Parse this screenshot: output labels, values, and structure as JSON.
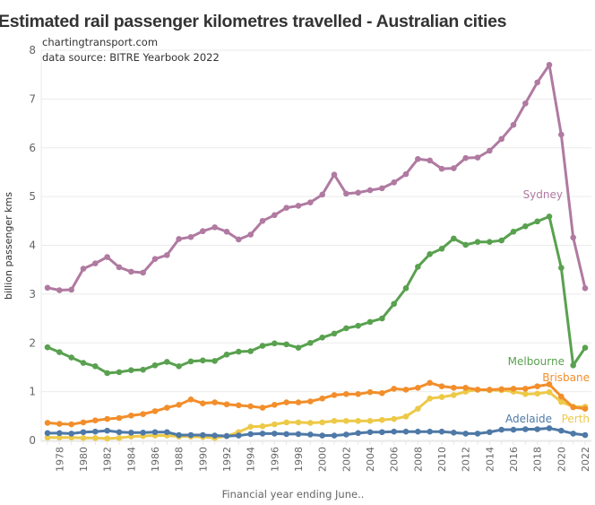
{
  "chart_data": {
    "type": "line",
    "title": "Estimated rail passenger kilometres travelled - Australian cities",
    "subtitle_lines": [
      "chartingtransport.com",
      "data source: BITRE Yearbook 2022"
    ],
    "xlabel": "Financial year ending June..",
    "ylabel": "billion passenger kms",
    "ylim": [
      0,
      8
    ],
    "yticks": [
      0,
      1,
      2,
      3,
      4,
      5,
      6,
      7,
      8
    ],
    "xlim": [
      1977,
      2022
    ],
    "xticks": [
      1978,
      1980,
      1982,
      1984,
      1986,
      1988,
      1990,
      1992,
      1994,
      1996,
      1998,
      2000,
      2002,
      2004,
      2006,
      2008,
      2010,
      2012,
      2014,
      2016,
      2018,
      2020,
      2022
    ],
    "grid": true,
    "legend": "direct labels at line ends (right)",
    "x": [
      1977,
      1978,
      1979,
      1980,
      1981,
      1982,
      1983,
      1984,
      1985,
      1986,
      1987,
      1988,
      1989,
      1990,
      1991,
      1992,
      1993,
      1994,
      1995,
      1996,
      1997,
      1998,
      1999,
      2000,
      2001,
      2002,
      2003,
      2004,
      2005,
      2006,
      2007,
      2008,
      2009,
      2010,
      2011,
      2012,
      2013,
      2014,
      2015,
      2016,
      2017,
      2018,
      2019,
      2020,
      2021,
      2022
    ],
    "series": [
      {
        "name": "Sydney",
        "color": "#b07aa1",
        "values": [
          3.13,
          3.08,
          3.09,
          3.52,
          3.63,
          3.76,
          3.55,
          3.46,
          3.44,
          3.72,
          3.8,
          4.13,
          4.17,
          4.29,
          4.37,
          4.28,
          4.12,
          4.22,
          4.5,
          4.62,
          4.77,
          4.81,
          4.88,
          5.04,
          5.45,
          5.06,
          5.08,
          5.13,
          5.17,
          5.29,
          5.46,
          5.77,
          5.74,
          5.57,
          5.58,
          5.79,
          5.8,
          5.94,
          6.18,
          6.47,
          6.91,
          7.34,
          7.7,
          6.27,
          4.16,
          3.12
        ]
      },
      {
        "name": "Melbourne",
        "color": "#59a14f",
        "values": [
          1.91,
          1.81,
          1.7,
          1.59,
          1.52,
          1.38,
          1.4,
          1.44,
          1.45,
          1.54,
          1.61,
          1.52,
          1.62,
          1.64,
          1.63,
          1.76,
          1.82,
          1.83,
          1.94,
          1.99,
          1.97,
          1.9,
          2.0,
          2.11,
          2.19,
          2.3,
          2.35,
          2.43,
          2.5,
          2.8,
          3.12,
          3.56,
          3.82,
          3.93,
          4.14,
          4.01,
          4.07,
          4.07,
          4.1,
          4.28,
          4.39,
          4.49,
          4.59,
          3.54,
          1.54,
          1.9
        ]
      },
      {
        "name": "Brisbane",
        "color": "#f28e2b",
        "values": [
          0.36,
          0.34,
          0.33,
          0.37,
          0.41,
          0.44,
          0.46,
          0.51,
          0.54,
          0.6,
          0.67,
          0.73,
          0.84,
          0.76,
          0.78,
          0.74,
          0.72,
          0.7,
          0.67,
          0.73,
          0.78,
          0.78,
          0.8,
          0.86,
          0.93,
          0.95,
          0.95,
          0.99,
          0.97,
          1.06,
          1.04,
          1.08,
          1.18,
          1.11,
          1.08,
          1.08,
          1.04,
          1.04,
          1.05,
          1.06,
          1.06,
          1.11,
          1.15,
          0.9,
          0.68,
          0.65
        ]
      },
      {
        "name": "Adelaide",
        "color": "#4e79a7",
        "values": [
          0.15,
          0.15,
          0.14,
          0.17,
          0.18,
          0.2,
          0.17,
          0.16,
          0.16,
          0.17,
          0.17,
          0.11,
          0.11,
          0.11,
          0.1,
          0.09,
          0.1,
          0.13,
          0.14,
          0.14,
          0.13,
          0.13,
          0.12,
          0.1,
          0.1,
          0.12,
          0.15,
          0.17,
          0.17,
          0.18,
          0.18,
          0.18,
          0.18,
          0.18,
          0.16,
          0.14,
          0.14,
          0.17,
          0.22,
          0.22,
          0.23,
          0.23,
          0.25,
          0.2,
          0.14,
          0.11
        ]
      },
      {
        "name": "Perth",
        "color": "#edc948",
        "values": [
          0.06,
          0.06,
          0.06,
          0.05,
          0.05,
          0.04,
          0.05,
          0.08,
          0.09,
          0.1,
          0.1,
          0.08,
          0.08,
          0.07,
          0.05,
          0.09,
          0.17,
          0.28,
          0.29,
          0.33,
          0.37,
          0.37,
          0.36,
          0.37,
          0.4,
          0.4,
          0.4,
          0.4,
          0.42,
          0.44,
          0.49,
          0.65,
          0.86,
          0.89,
          0.93,
          1.0,
          1.04,
          1.03,
          1.03,
          1.0,
          0.95,
          0.96,
          0.99,
          0.79,
          0.69,
          0.69
        ]
      }
    ]
  }
}
